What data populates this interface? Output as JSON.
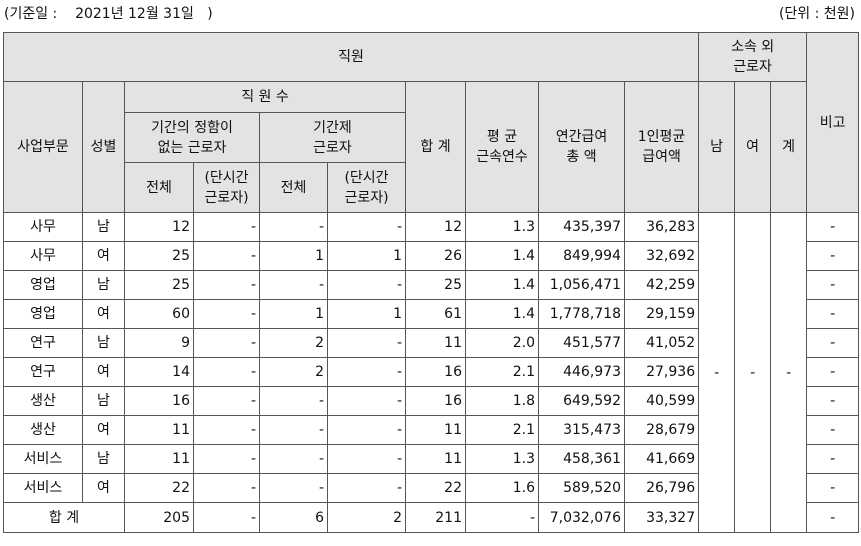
{
  "header": {
    "date_label": "(기준일 :    2021년 12월 31일   )",
    "unit_label": "(단위 : 천원)"
  },
  "columns": {
    "employees": "직원",
    "outside_l1": "소속 외",
    "outside_l2": "근로자",
    "remarks": "비고",
    "division": "사업부문",
    "gender": "성별",
    "headcount": "직 원 수",
    "permanent_l1": "기간의 정함이",
    "permanent_l2": "없는 근로자",
    "contract_l1": "기간제",
    "contract_l2": "근로자",
    "subtotal": "합 계",
    "tenure_l1": "평 균",
    "tenure_l2": "근속연수",
    "annual_pay_l1": "연간급여",
    "annual_pay_l2": "총 액",
    "avg_pay_l1": "1인평균",
    "avg_pay_l2": "급여액",
    "male": "남",
    "female": "여",
    "sum": "계",
    "all": "전체",
    "part_l1": "(단시간",
    "part_l2": "근로자)"
  },
  "rows": [
    {
      "division": "사무",
      "gender": "남",
      "perm_all": "12",
      "perm_part": "-",
      "cont_all": "-",
      "cont_part": "-",
      "total": "12",
      "tenure": "1.3",
      "annual": "435,397",
      "avg": "36,283",
      "remark": "-"
    },
    {
      "division": "사무",
      "gender": "여",
      "perm_all": "25",
      "perm_part": "-",
      "cont_all": "1",
      "cont_part": "1",
      "total": "26",
      "tenure": "1.4",
      "annual": "849,994",
      "avg": "32,692",
      "remark": "-"
    },
    {
      "division": "영업",
      "gender": "남",
      "perm_all": "25",
      "perm_part": "-",
      "cont_all": "-",
      "cont_part": "-",
      "total": "25",
      "tenure": "1.4",
      "annual": "1,056,471",
      "avg": "42,259",
      "remark": "-"
    },
    {
      "division": "영업",
      "gender": "여",
      "perm_all": "60",
      "perm_part": "-",
      "cont_all": "1",
      "cont_part": "1",
      "total": "61",
      "tenure": "1.4",
      "annual": "1,778,718",
      "avg": "29,159",
      "remark": "-"
    },
    {
      "division": "연구",
      "gender": "남",
      "perm_all": "9",
      "perm_part": "-",
      "cont_all": "2",
      "cont_part": "-",
      "total": "11",
      "tenure": "2.0",
      "annual": "451,577",
      "avg": "41,052",
      "remark": "-"
    },
    {
      "division": "연구",
      "gender": "여",
      "perm_all": "14",
      "perm_part": "-",
      "cont_all": "2",
      "cont_part": "-",
      "total": "16",
      "tenure": "2.1",
      "annual": "446,973",
      "avg": "27,936",
      "remark": "-"
    },
    {
      "division": "생산",
      "gender": "남",
      "perm_all": "16",
      "perm_part": "-",
      "cont_all": "-",
      "cont_part": "-",
      "total": "16",
      "tenure": "1.8",
      "annual": "649,592",
      "avg": "40,599",
      "remark": "-"
    },
    {
      "division": "생산",
      "gender": "여",
      "perm_all": "11",
      "perm_part": "-",
      "cont_all": "-",
      "cont_part": "-",
      "total": "11",
      "tenure": "2.1",
      "annual": "315,473",
      "avg": "28,679",
      "remark": "-"
    },
    {
      "division": "서비스",
      "gender": "남",
      "perm_all": "11",
      "perm_part": "-",
      "cont_all": "-",
      "cont_part": "-",
      "total": "11",
      "tenure": "1.3",
      "annual": "458,361",
      "avg": "41,669",
      "remark": "-"
    },
    {
      "division": "서비스",
      "gender": "여",
      "perm_all": "22",
      "perm_part": "-",
      "cont_all": "-",
      "cont_part": "-",
      "total": "22",
      "tenure": "1.6",
      "annual": "589,520",
      "avg": "26,796",
      "remark": "-"
    }
  ],
  "total_row": {
    "label": "합 계",
    "perm_all": "205",
    "perm_part": "-",
    "cont_all": "6",
    "cont_part": "2",
    "total": "211",
    "tenure": "-",
    "annual": "7,032,076",
    "avg": "33,327",
    "remark": "-"
  },
  "outside": {
    "male": "-",
    "female": "-",
    "sum": "-"
  }
}
